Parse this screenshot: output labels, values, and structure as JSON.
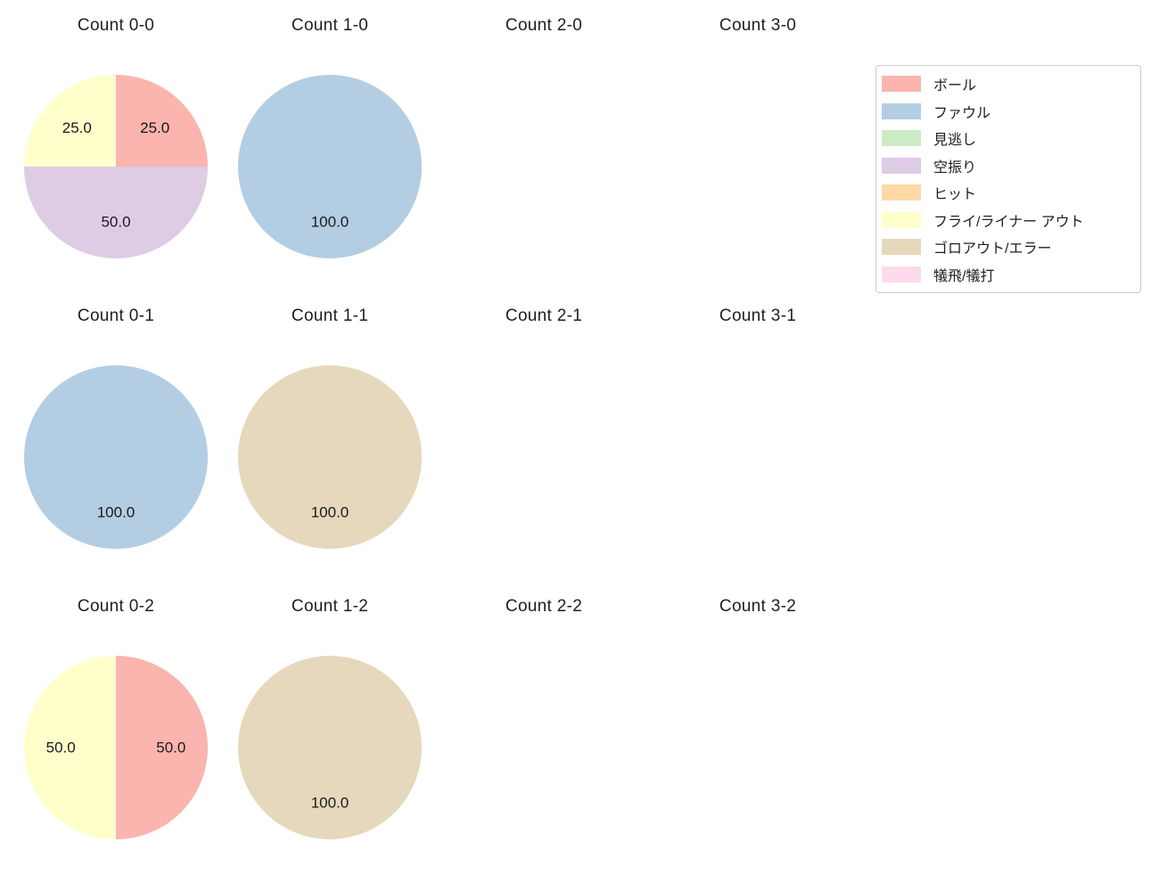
{
  "figure": {
    "background": "#ffffff",
    "layout": {
      "grid_rows": 3,
      "grid_cols": 4,
      "legend_position": "top-right"
    }
  },
  "legend": {
    "items": [
      {
        "label": "ボール",
        "color": "#fbb4ae"
      },
      {
        "label": "ファウル",
        "color": "#b3cde3"
      },
      {
        "label": "見逃し",
        "color": "#ccebc5"
      },
      {
        "label": "空振り",
        "color": "#decbe4"
      },
      {
        "label": "ヒット",
        "color": "#fed9a6"
      },
      {
        "label": "フライ/ライナー アウト",
        "color": "#ffffcc"
      },
      {
        "label": "ゴロアウト/エラー",
        "color": "#e5d8bd"
      },
      {
        "label": "犠飛/犠打",
        "color": "#fddaec"
      }
    ]
  },
  "chart_data": [
    {
      "type": "pie",
      "title": "Count 0-0",
      "start_angle": 90,
      "direction": "clockwise",
      "label_format": "one_decimal",
      "slices": [
        {
          "category": "ボール",
          "value": 25.0
        },
        {
          "category": "空振り",
          "value": 50.0
        },
        {
          "category": "フライ/ライナー アウト",
          "value": 25.0
        }
      ]
    },
    {
      "type": "pie",
      "title": "Count 1-0",
      "start_angle": 90,
      "direction": "clockwise",
      "label_format": "one_decimal",
      "slices": [
        {
          "category": "ファウル",
          "value": 100.0
        }
      ]
    },
    {
      "type": "pie",
      "title": "Count 2-0",
      "start_angle": 90,
      "direction": "clockwise",
      "label_format": "one_decimal",
      "slices": []
    },
    {
      "type": "pie",
      "title": "Count 3-0",
      "start_angle": 90,
      "direction": "clockwise",
      "label_format": "one_decimal",
      "slices": []
    },
    {
      "type": "pie",
      "title": "Count 0-1",
      "start_angle": 90,
      "direction": "clockwise",
      "label_format": "one_decimal",
      "slices": [
        {
          "category": "ファウル",
          "value": 100.0
        }
      ]
    },
    {
      "type": "pie",
      "title": "Count 1-1",
      "start_angle": 90,
      "direction": "clockwise",
      "label_format": "one_decimal",
      "slices": [
        {
          "category": "ゴロアウト/エラー",
          "value": 100.0
        }
      ]
    },
    {
      "type": "pie",
      "title": "Count 2-1",
      "start_angle": 90,
      "direction": "clockwise",
      "label_format": "one_decimal",
      "slices": []
    },
    {
      "type": "pie",
      "title": "Count 3-1",
      "start_angle": 90,
      "direction": "clockwise",
      "label_format": "one_decimal",
      "slices": []
    },
    {
      "type": "pie",
      "title": "Count 0-2",
      "start_angle": 90,
      "direction": "clockwise",
      "label_format": "one_decimal",
      "slices": [
        {
          "category": "ボール",
          "value": 50.0
        },
        {
          "category": "フライ/ライナー アウト",
          "value": 50.0
        }
      ]
    },
    {
      "type": "pie",
      "title": "Count 1-2",
      "start_angle": 90,
      "direction": "clockwise",
      "label_format": "one_decimal",
      "slices": [
        {
          "category": "ゴロアウト/エラー",
          "value": 100.0
        }
      ]
    },
    {
      "type": "pie",
      "title": "Count 2-2",
      "start_angle": 90,
      "direction": "clockwise",
      "label_format": "one_decimal",
      "slices": []
    },
    {
      "type": "pie",
      "title": "Count 3-2",
      "start_angle": 90,
      "direction": "clockwise",
      "label_format": "one_decimal",
      "slices": []
    }
  ]
}
